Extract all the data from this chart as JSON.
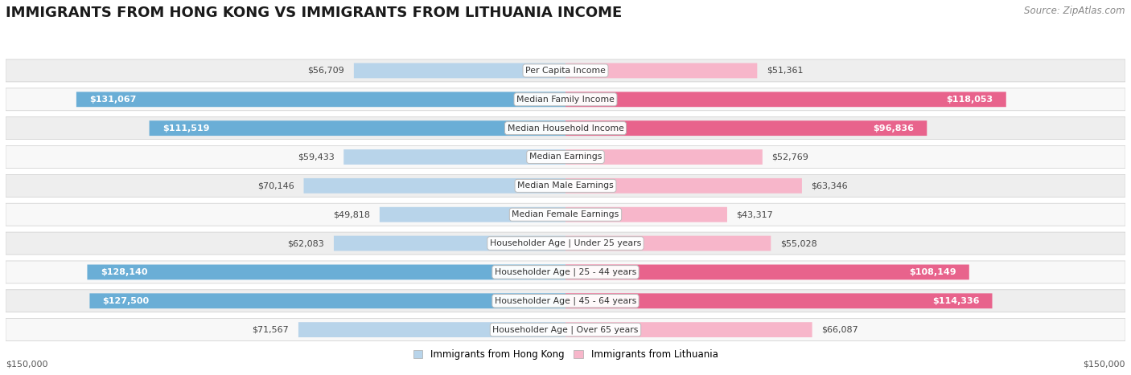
{
  "title": "IMMIGRANTS FROM HONG KONG VS IMMIGRANTS FROM LITHUANIA INCOME",
  "source": "Source: ZipAtlas.com",
  "categories": [
    "Per Capita Income",
    "Median Family Income",
    "Median Household Income",
    "Median Earnings",
    "Median Male Earnings",
    "Median Female Earnings",
    "Householder Age | Under 25 years",
    "Householder Age | 25 - 44 years",
    "Householder Age | 45 - 64 years",
    "Householder Age | Over 65 years"
  ],
  "hk_values": [
    56709,
    131067,
    111519,
    59433,
    70146,
    49818,
    62083,
    128140,
    127500,
    71567
  ],
  "lt_values": [
    51361,
    118053,
    96836,
    52769,
    63346,
    43317,
    55028,
    108149,
    114336,
    66087
  ],
  "hk_labels": [
    "$56,709",
    "$131,067",
    "$111,519",
    "$59,433",
    "$70,146",
    "$49,818",
    "$62,083",
    "$128,140",
    "$127,500",
    "$71,567"
  ],
  "lt_labels": [
    "$51,361",
    "$118,053",
    "$96,836",
    "$52,769",
    "$63,346",
    "$43,317",
    "$55,028",
    "$108,149",
    "$114,336",
    "$66,087"
  ],
  "hk_color_light": "#b8d4ea",
  "hk_color_dark": "#6aaed6",
  "lt_color_light": "#f7b6ca",
  "lt_color_dark": "#e8638c",
  "max_value": 150000,
  "row_bg_even": "#eeeeee",
  "row_bg_odd": "#f8f8f8",
  "legend_hk": "Immigrants from Hong Kong",
  "legend_lt": "Immigrants from Lithuania",
  "hk_inside_threshold": 95000,
  "lt_inside_threshold": 95000,
  "title_fontsize": 13,
  "source_fontsize": 8.5,
  "label_fontsize": 8,
  "category_fontsize": 7.8,
  "axis_label_fontsize": 8,
  "legend_fontsize": 8.5
}
